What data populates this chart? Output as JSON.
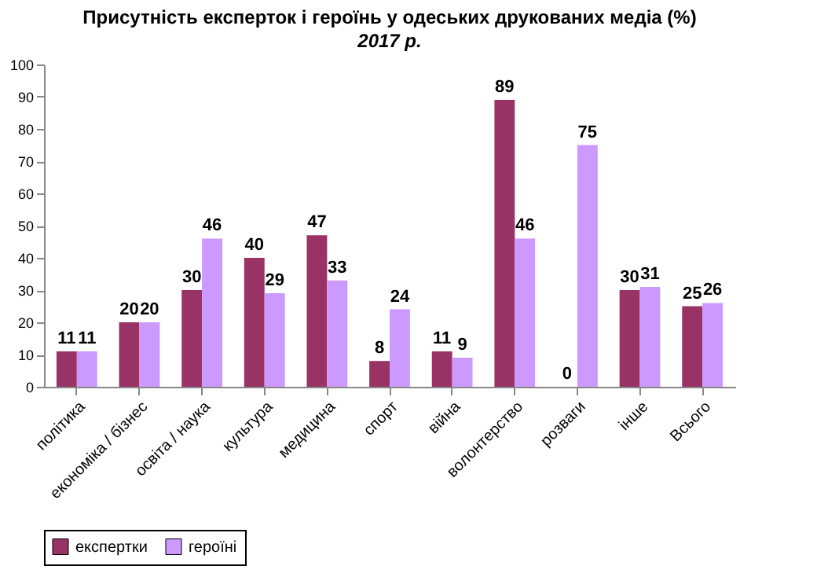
{
  "chart_data": {
    "type": "bar",
    "title": "Присутність  експерток і героїнь у одеських друкованих медіа (%)",
    "subtitle": "2017 р.",
    "categories": [
      "політика",
      "економіка / бізнес",
      "освіта / наука",
      "культура",
      "медицина",
      "спорт",
      "війна",
      "волонтерство",
      "розваги",
      "інше",
      "Всього"
    ],
    "series": [
      {
        "name": "експертки",
        "color": "#993366",
        "values": [
          11,
          20,
          30,
          40,
          47,
          8,
          11,
          89,
          0,
          30,
          25
        ]
      },
      {
        "name": "героїні",
        "color": "#cc99ff",
        "values": [
          11,
          20,
          46,
          29,
          33,
          24,
          9,
          46,
          75,
          31,
          26
        ]
      }
    ],
    "ylim": [
      0,
      100
    ],
    "yticks": [
      0,
      10,
      20,
      30,
      40,
      50,
      60,
      70,
      80,
      90,
      100
    ],
    "grid": false,
    "legend": "bottom",
    "data_labels": true
  }
}
